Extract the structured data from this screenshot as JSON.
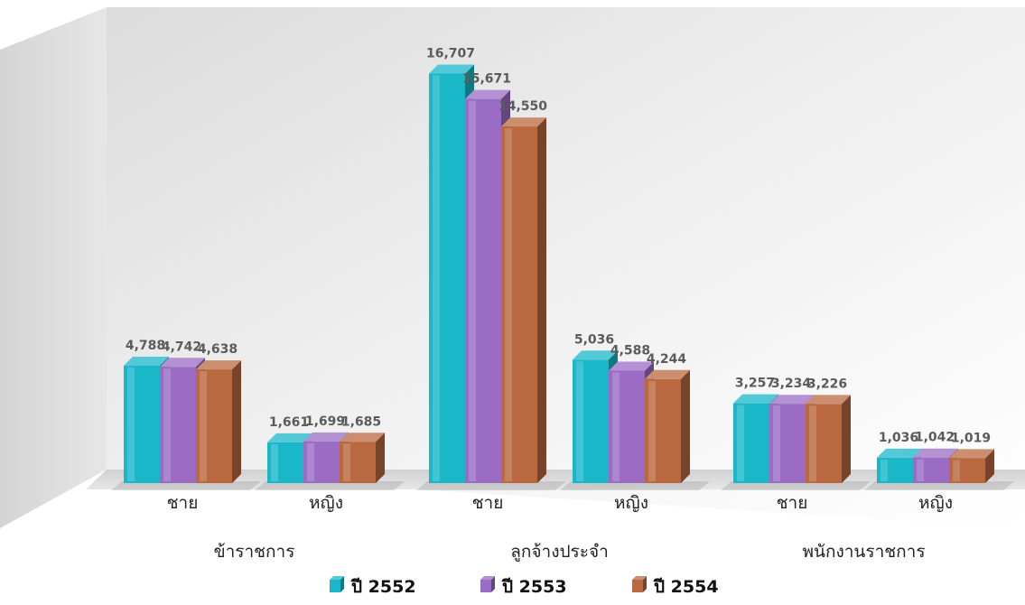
{
  "chart_data": {
    "type": "bar",
    "groups": [
      {
        "label": "ข้าราชการ",
        "subcategories": [
          "ชาย",
          "หญิง"
        ]
      },
      {
        "label": "ลูกจ้างประจำ",
        "subcategories": [
          "ชาย",
          "หญิง"
        ]
      },
      {
        "label": "พนักงานราชการ",
        "subcategories": [
          "ชาย",
          "หญิง"
        ]
      }
    ],
    "categories": [
      "ชาย",
      "หญิง",
      "ชาย",
      "หญิง",
      "ชาย",
      "หญิง"
    ],
    "series": [
      {
        "name": "ปี 2552",
        "color": "#1ab7c9",
        "values": [
          4788,
          1661,
          16707,
          5036,
          3257,
          1036
        ]
      },
      {
        "name": "ปี 2553",
        "color": "#9a6cc4",
        "values": [
          4742,
          1699,
          15671,
          4588,
          3234,
          1042
        ]
      },
      {
        "name": "ปี 2554",
        "color": "#b9683f",
        "values": [
          4638,
          1685,
          14550,
          4244,
          3226,
          1019
        ]
      }
    ],
    "value_labels": [
      [
        "4,788",
        "1,661",
        "16,707",
        "5,036",
        "3,257",
        "1,036"
      ],
      [
        "4,742",
        "1,699",
        "15,671",
        "4,588",
        "3,234",
        "1,042"
      ],
      [
        "4,638",
        "1,685",
        "14,550",
        "4,244",
        "3,226",
        "1,019"
      ]
    ],
    "ylim": [
      0,
      17500
    ],
    "grid": false,
    "legend_position": "bottom-center",
    "title": "",
    "xlabel": "",
    "ylabel": ""
  }
}
